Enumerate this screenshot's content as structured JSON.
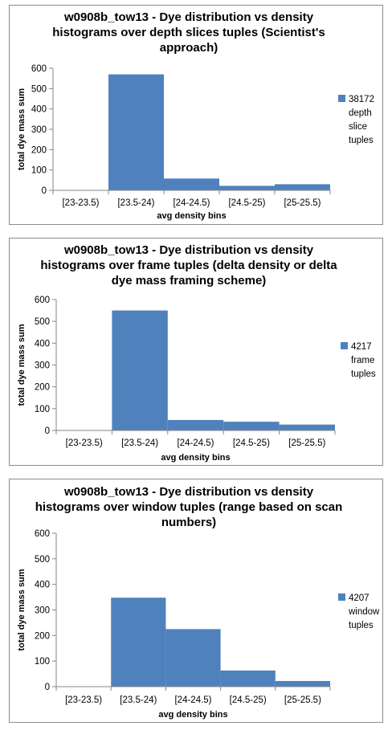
{
  "chart_data": [
    {
      "type": "bar",
      "title_lines": [
        "w0908b_tow13 - Dye distribution vs density",
        "histograms over depth slices tuples (Scientist's",
        "approach)"
      ],
      "categories": [
        "[23-23.5)",
        "[23.5-24)",
        "[24-24.5)",
        "[24.5-25)",
        "[25-25.5)"
      ],
      "series": [
        {
          "name": "38172 depth slice tuples",
          "values": [
            0,
            570,
            58,
            22,
            30
          ]
        }
      ],
      "legend_lines": [
        "38172",
        "depth",
        "slice",
        "tuples"
      ],
      "xlabel": "avg density bins",
      "ylabel": "total dye mass sum",
      "ylim": [
        0,
        600
      ],
      "yticks": [
        0,
        100,
        200,
        300,
        400,
        500,
        600
      ],
      "legend_position": "right",
      "gridlines": false
    },
    {
      "type": "bar",
      "title_lines": [
        "w0908b_tow13 - Dye distribution vs density",
        "histograms over frame tuples (delta density or delta",
        "dye mass framing scheme)"
      ],
      "categories": [
        "[23-23.5)",
        "[23.5-24)",
        "[24-24.5)",
        "[24.5-25)",
        "[25-25.5)"
      ],
      "series": [
        {
          "name": "4217 frame tuples",
          "values": [
            0,
            550,
            48,
            40,
            27
          ]
        }
      ],
      "legend_lines": [
        "4217",
        "frame",
        "tuples"
      ],
      "xlabel": "avg density bins",
      "ylabel": "total dye mass sum",
      "ylim": [
        0,
        600
      ],
      "yticks": [
        0,
        100,
        200,
        300,
        400,
        500,
        600
      ],
      "legend_position": "right",
      "gridlines": false
    },
    {
      "type": "bar",
      "title_lines": [
        "w0908b_tow13 - Dye distribution vs density",
        "histograms over window tuples (range based on scan",
        "numbers)"
      ],
      "categories": [
        "[23-23.5)",
        "[23.5-24)",
        "[24-24.5)",
        "[24.5-25)",
        "[25-25.5)"
      ],
      "series": [
        {
          "name": "4207 window tuples",
          "values": [
            0,
            348,
            225,
            63,
            22
          ]
        }
      ],
      "legend_lines": [
        "4207",
        "window",
        "tuples"
      ],
      "xlabel": "avg density bins",
      "ylabel": "total dye mass sum",
      "ylim": [
        0,
        600
      ],
      "yticks": [
        0,
        100,
        200,
        300,
        400,
        500,
        600
      ],
      "legend_position": "right",
      "gridlines": false
    }
  ],
  "colors": {
    "bar": "#4f81bd",
    "axis": "#868686",
    "panel_border": "#8c8c8c",
    "text": "#000000"
  }
}
